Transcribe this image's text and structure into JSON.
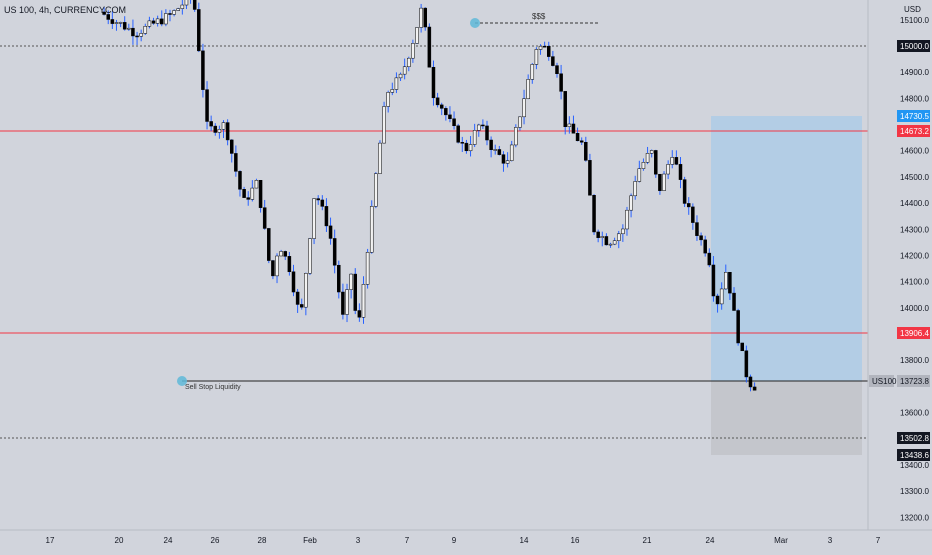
{
  "header": {
    "title": "US 100, 4h, CURRENCYCOM"
  },
  "currency": "USD",
  "price_axis": {
    "ticks": [
      "15100.0",
      "14900.0",
      "14800.0",
      "14600.0",
      "14500.0",
      "14400.0",
      "14300.0",
      "14200.0",
      "14100.0",
      "14000.0",
      "13800.0",
      "13600.0",
      "13400.0",
      "13300.0",
      "13200.0"
    ]
  },
  "time_axis": {
    "labels": [
      "17",
      "20",
      "24",
      "26",
      "28",
      "Feb",
      "3",
      "7",
      "9",
      "14",
      "16",
      "21",
      "24",
      "Mar",
      "3",
      "7"
    ]
  },
  "price_labels": {
    "level_15000": "15000.0",
    "level_14730": "14730.5",
    "level_14673": "14673.2",
    "level_13906": "13906.4",
    "symbol_tag": "US100",
    "current": "13723.8",
    "level_13502": "13502.8",
    "level_13438": "13438.6"
  },
  "annotations": {
    "buy_stop": "$$$",
    "sell_stop": "Sell Stop Liquidity"
  },
  "colors": {
    "background": "#d1d4dc",
    "resistance_line": "#f23645",
    "candle_up": "#f2f2f2",
    "candle_down": "#000000",
    "wick": "#2962ff",
    "target_zone": "#b3cde5",
    "stop_zone": "#c4c6cc",
    "marker": "#5fb8d8"
  },
  "chart_data": {
    "type": "candlestick",
    "symbol": "US 100",
    "interval": "4h",
    "ylim": [
      13170,
      15160
    ],
    "horizontal_levels": [
      15000.0,
      14673.2,
      13906.4,
      13723.8,
      13502.8
    ],
    "position_tool": {
      "target": 14730.5,
      "entry": 13723.8,
      "stop": 13438.6
    },
    "close_path": [
      {
        "t": 0.0,
        "c": 15130
      },
      {
        "t": 1.0,
        "c": 15050
      },
      {
        "t": 2.0,
        "c": 15120
      },
      {
        "t": 2.6,
        "c": 15200
      },
      {
        "t": 3.0,
        "c": 14680
      },
      {
        "t": 3.5,
        "c": 14700
      },
      {
        "t": 4.0,
        "c": 14400
      },
      {
        "t": 4.4,
        "c": 14480
      },
      {
        "t": 4.8,
        "c": 14100
      },
      {
        "t": 5.0,
        "c": 14250
      },
      {
        "t": 5.3,
        "c": 14150
      },
      {
        "t": 5.6,
        "c": 13950
      },
      {
        "t": 6.0,
        "c": 14450
      },
      {
        "t": 6.4,
        "c": 14300
      },
      {
        "t": 6.8,
        "c": 13950
      },
      {
        "t": 7.0,
        "c": 14150
      },
      {
        "t": 7.2,
        "c": 13900
      },
      {
        "t": 7.7,
        "c": 14500
      },
      {
        "t": 8.0,
        "c": 14820
      },
      {
        "t": 8.4,
        "c": 14880
      },
      {
        "t": 8.7,
        "c": 15000
      },
      {
        "t": 9.0,
        "c": 15150
      },
      {
        "t": 9.3,
        "c": 14820
      },
      {
        "t": 9.5,
        "c": 14780
      },
      {
        "t": 9.8,
        "c": 14700
      },
      {
        "t": 10.2,
        "c": 14600
      },
      {
        "t": 10.6,
        "c": 14700
      },
      {
        "t": 11.0,
        "c": 14600
      },
      {
        "t": 11.4,
        "c": 14550
      },
      {
        "t": 11.8,
        "c": 14780
      },
      {
        "t": 12.2,
        "c": 15000
      },
      {
        "t": 12.5,
        "c": 14990
      },
      {
        "t": 12.8,
        "c": 14900
      },
      {
        "t": 13.0,
        "c": 14700
      },
      {
        "t": 13.5,
        "c": 14620
      },
      {
        "t": 13.8,
        "c": 14300
      },
      {
        "t": 14.2,
        "c": 14250
      },
      {
        "t": 14.6,
        "c": 14300
      },
      {
        "t": 15.0,
        "c": 14520
      },
      {
        "t": 15.4,
        "c": 14600
      },
      {
        "t": 15.6,
        "c": 14440
      },
      {
        "t": 16.0,
        "c": 14600
      },
      {
        "t": 16.3,
        "c": 14420
      },
      {
        "t": 16.7,
        "c": 14280
      },
      {
        "t": 17.0,
        "c": 14200
      },
      {
        "t": 17.2,
        "c": 14000
      },
      {
        "t": 17.5,
        "c": 14150
      },
      {
        "t": 17.8,
        "c": 13900
      },
      {
        "t": 18.1,
        "c": 13720
      },
      {
        "t": 18.3,
        "c": 13700
      }
    ]
  }
}
